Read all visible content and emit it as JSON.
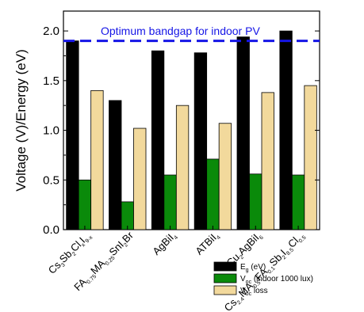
{
  "chart_data": {
    "type": "bar",
    "ylabel": "Voltage (V)/Energy (eV)",
    "ylim": [
      0,
      2.2
    ],
    "yticks": [
      "0.0",
      "0.5",
      "1.0",
      "1.5",
      "2.0"
    ],
    "ytick_values": [
      0,
      0.5,
      1.0,
      1.5,
      2.0
    ],
    "categories": [
      {
        "base": "Cs3Sb2ClxI9-x",
        "parts": [
          [
            "Cs",
            ""
          ],
          [
            "3",
            "sub"
          ],
          [
            "Sb",
            ""
          ],
          [
            "2",
            "sub"
          ],
          [
            "Cl",
            ""
          ],
          [
            "x",
            "sub"
          ],
          [
            "I",
            ""
          ],
          [
            "9-x",
            "sub"
          ]
        ]
      },
      {
        "base": "FA0.75MA0.25SnI2Br",
        "parts": [
          [
            "FA",
            ""
          ],
          [
            "0.75",
            "sub"
          ],
          [
            "MA",
            ""
          ],
          [
            "0.25",
            "sub"
          ],
          [
            "SnI",
            ""
          ],
          [
            "2",
            "sub"
          ],
          [
            "Br",
            ""
          ]
        ]
      },
      {
        "base": "AgBiI4",
        "parts": [
          [
            "AgBiI",
            ""
          ],
          [
            "4",
            "sub"
          ]
        ]
      },
      {
        "base": "ATBiI4",
        "parts": [
          [
            "ATBiI",
            ""
          ],
          [
            "4",
            "sub"
          ]
        ]
      },
      {
        "base": "Cu2AgBiI6",
        "parts": [
          [
            "Cu",
            ""
          ],
          [
            "2",
            "sub"
          ],
          [
            "AgBiI",
            ""
          ],
          [
            "6",
            "sub"
          ]
        ]
      },
      {
        "base": "Cs2.4MA0.5FA0.1Sb2I8.5Cl0.5",
        "parts": [
          [
            "Cs",
            ""
          ],
          [
            "2.4",
            "sub"
          ],
          [
            "MA",
            ""
          ],
          [
            "0.5",
            "sub"
          ],
          [
            "FA",
            ""
          ],
          [
            "0.1",
            "sub"
          ],
          [
            "Sb",
            ""
          ],
          [
            "2",
            "sub"
          ],
          [
            "I",
            ""
          ],
          [
            "8.5",
            "sub"
          ],
          [
            "Cl",
            ""
          ],
          [
            "0.5",
            "sub"
          ]
        ]
      }
    ],
    "series": [
      {
        "name": "Eg (eV)",
        "name_parts": [
          [
            "E",
            ""
          ],
          [
            "g",
            "sub"
          ],
          [
            " (eV)",
            ""
          ]
        ],
        "color": "#000000",
        "values": [
          1.9,
          1.3,
          1.8,
          1.78,
          1.94,
          2.0
        ]
      },
      {
        "name": "Voc (indoor 1000 lux)",
        "name_parts": [
          [
            "V",
            ""
          ],
          [
            "oc",
            "sub"
          ],
          [
            " (indoor 1000 lux)",
            ""
          ]
        ],
        "color": "#0a8a0a",
        "values": [
          0.5,
          0.28,
          0.55,
          0.71,
          0.56,
          0.55
        ]
      },
      {
        "name": "Voc loss",
        "name_parts": [
          [
            "V",
            ""
          ],
          [
            "oc",
            "sub"
          ],
          [
            " loss",
            ""
          ]
        ],
        "color": "#f2d99c",
        "values": [
          1.4,
          1.02,
          1.25,
          1.07,
          1.38,
          1.45
        ]
      }
    ],
    "reference_line": {
      "value": 1.9,
      "label": "Optimum bandgap for indoor PV",
      "color": "#1515e6"
    },
    "legend_position": "bottom-right",
    "grid": false
  }
}
